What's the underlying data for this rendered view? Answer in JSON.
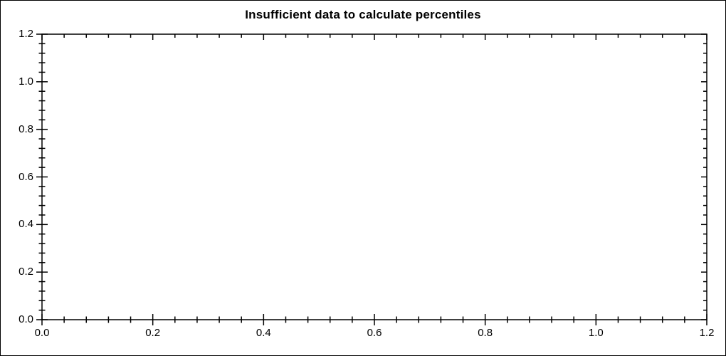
{
  "figure": {
    "background": "#ffffff",
    "border_color": "#000000",
    "text_color": "#000000",
    "axis_color": "#000000"
  },
  "chart_data": {
    "type": "scatter",
    "title": "Insufficient data to calculate percentiles",
    "series": [],
    "points": [],
    "xlabel": "",
    "ylabel": "",
    "xlim": [
      0.0,
      1.2
    ],
    "ylim": [
      0.0,
      1.2
    ],
    "x_ticks": {
      "values": [
        0.0,
        0.2,
        0.4,
        0.6,
        0.8,
        1.0,
        1.2
      ],
      "labels": [
        "0.0",
        "0.2",
        "0.4",
        "0.6",
        "0.8",
        "1.0",
        "1.2"
      ]
    },
    "y_ticks": {
      "values": [
        0.0,
        0.2,
        0.4,
        0.6,
        0.8,
        1.0,
        1.2
      ],
      "labels": [
        "0.0",
        "0.2",
        "0.4",
        "0.6",
        "0.8",
        "1.0",
        "1.2"
      ]
    },
    "minor_tick_interval": 0.04,
    "grid": false,
    "frame": true,
    "tick_style": {
      "left_bottom": "crossing",
      "top_right": "inward"
    },
    "legend": null,
    "plot_area_empty": true
  }
}
